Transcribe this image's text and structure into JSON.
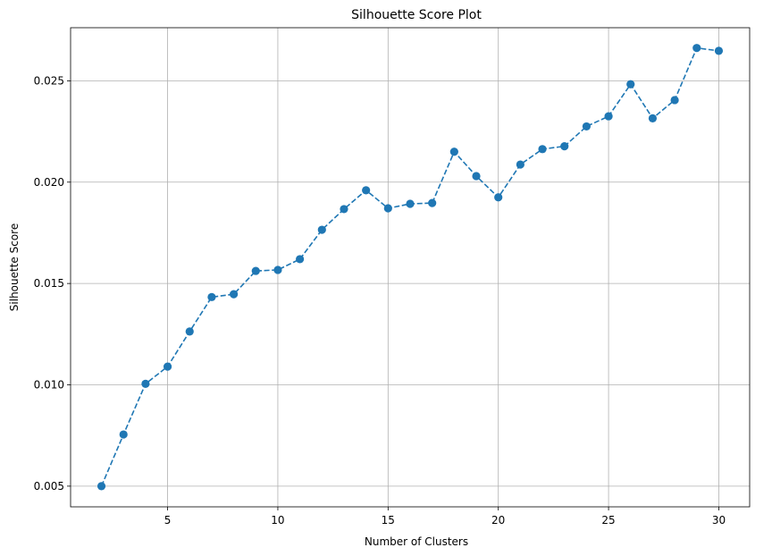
{
  "chart_data": {
    "type": "line",
    "title": "Silhouette Score Plot",
    "xlabel": "Number of Clusters",
    "ylabel": "Silhouette Score",
    "xlim": [
      0.6,
      31.4
    ],
    "ylim": [
      0.00398,
      0.02762
    ],
    "xticks": [
      5,
      10,
      15,
      20,
      25,
      30
    ],
    "yticks": [
      0.005,
      0.01,
      0.015,
      0.02,
      0.025
    ],
    "ytick_labels": [
      "0.005",
      "0.010",
      "0.015",
      "0.020",
      "0.025"
    ],
    "grid": true,
    "line_style": "dashed",
    "marker": "circle",
    "color": "#1f77b4",
    "series": [
      {
        "x": [
          2,
          3,
          4,
          5,
          6,
          7,
          8,
          9,
          10,
          11,
          12,
          13,
          14,
          15,
          16,
          17,
          18,
          19,
          20,
          21,
          22,
          23,
          24,
          25,
          26,
          27,
          28,
          29,
          30
        ],
        "values": [
          0.005,
          0.00755,
          0.01005,
          0.0109,
          0.01263,
          0.01433,
          0.01447,
          0.01562,
          0.01567,
          0.0162,
          0.01765,
          0.01867,
          0.0196,
          0.01871,
          0.01893,
          0.01897,
          0.0215,
          0.0203,
          0.01925,
          0.02087,
          0.02163,
          0.02177,
          0.02275,
          0.02325,
          0.02483,
          0.02315,
          0.02405,
          0.02662,
          0.02648
        ]
      }
    ]
  }
}
